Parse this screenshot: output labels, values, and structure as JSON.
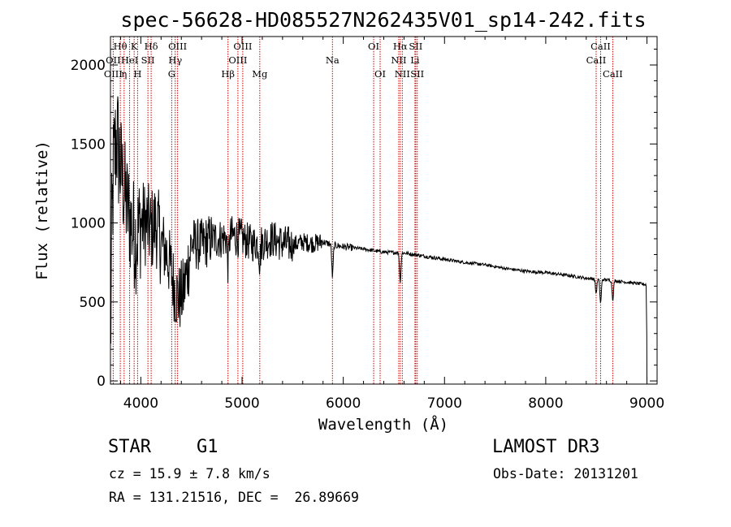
{
  "chart_data": {
    "type": "line",
    "title": "spec-56628-HD085527N262435V01_sp14-242.fits",
    "xlabel": "Wavelength (Å)",
    "ylabel": "Flux (relative)",
    "xlim": [
      3700,
      9100
    ],
    "ylim": [
      -20,
      2180
    ],
    "x_ticks": [
      4000,
      5000,
      6000,
      7000,
      8000,
      9000
    ],
    "y_ticks": [
      0,
      500,
      1000,
      1500,
      2000
    ],
    "spectrum_anchors": [
      [
        3700,
        150
      ],
      [
        3712,
        900
      ],
      [
        3730,
        1350
      ],
      [
        3760,
        1550
      ],
      [
        3800,
        1350
      ],
      [
        3850,
        1150
      ],
      [
        3900,
        1000
      ],
      [
        3950,
        900
      ],
      [
        4000,
        1000
      ],
      [
        4050,
        1000
      ],
      [
        4100,
        950
      ],
      [
        4150,
        1000
      ],
      [
        4200,
        870
      ],
      [
        4250,
        820
      ],
      [
        4300,
        700
      ],
      [
        4340,
        560
      ],
      [
        4380,
        520
      ],
      [
        4420,
        560
      ],
      [
        4460,
        700
      ],
      [
        4500,
        870
      ],
      [
        4600,
        860
      ],
      [
        4700,
        900
      ],
      [
        4800,
        900
      ],
      [
        4900,
        920
      ],
      [
        5000,
        900
      ],
      [
        5100,
        870
      ],
      [
        5200,
        880
      ],
      [
        5300,
        900
      ],
      [
        5400,
        870
      ],
      [
        5500,
        860
      ],
      [
        5600,
        880
      ],
      [
        5700,
        870
      ],
      [
        5800,
        880
      ],
      [
        5900,
        860
      ],
      [
        6000,
        850
      ],
      [
        6200,
        835
      ],
      [
        6400,
        815
      ],
      [
        6600,
        810
      ],
      [
        6800,
        790
      ],
      [
        7000,
        770
      ],
      [
        7200,
        750
      ],
      [
        7400,
        735
      ],
      [
        7600,
        712
      ],
      [
        7800,
        695
      ],
      [
        8000,
        685
      ],
      [
        8200,
        670
      ],
      [
        8400,
        650
      ],
      [
        8600,
        640
      ],
      [
        8800,
        625
      ],
      [
        8990,
        610
      ]
    ],
    "absorption_features": [
      {
        "x": 4862,
        "depth": 180
      },
      {
        "x": 5175,
        "depth": 120
      },
      {
        "x": 5893,
        "depth": 200
      },
      {
        "x": 6563,
        "depth": 180
      },
      {
        "x": 8498,
        "depth": 90
      },
      {
        "x": 8542,
        "depth": 150
      },
      {
        "x": 8662,
        "depth": 120
      }
    ],
    "spectral_lines": [
      {
        "label": "Hθ",
        "x": 3797,
        "row": 0
      },
      {
        "label": "OII",
        "x": 3727,
        "row": 1
      },
      {
        "label": "OIII",
        "x": 3727,
        "row": 2
      },
      {
        "label": "HeI",
        "x": 3889,
        "row": 1
      },
      {
        "label": "η",
        "x": 3835,
        "row": 2
      },
      {
        "label": "K",
        "x": 3934,
        "row": 0
      },
      {
        "label": "SII",
        "x": 4070,
        "row": 1
      },
      {
        "label": "H",
        "x": 3968,
        "row": 2
      },
      {
        "label": "Hδ",
        "x": 4102,
        "row": 0
      },
      {
        "label": "OIII",
        "x": 4363,
        "row": 0
      },
      {
        "label": "Hγ",
        "x": 4340,
        "row": 1
      },
      {
        "label": "G",
        "x": 4305,
        "row": 2
      },
      {
        "label": "OIII",
        "x": 5007,
        "row": 0
      },
      {
        "label": "OIII",
        "x": 4959,
        "row": 1
      },
      {
        "label": "Hβ",
        "x": 4861,
        "row": 2
      },
      {
        "label": "Mg",
        "x": 5175,
        "row": 2
      },
      {
        "label": "Na",
        "x": 5893,
        "row": 1
      },
      {
        "label": "OI",
        "x": 6300,
        "row": 0
      },
      {
        "label": "OI",
        "x": 6364,
        "row": 2
      },
      {
        "label": "Hα",
        "x": 6563,
        "row": 0
      },
      {
        "label": "SII",
        "x": 6716,
        "row": 0
      },
      {
        "label": "NII",
        "x": 6548,
        "row": 1
      },
      {
        "label": "Li",
        "x": 6708,
        "row": 1
      },
      {
        "label": "NII",
        "x": 6583,
        "row": 2
      },
      {
        "label": "SII",
        "x": 6731,
        "row": 2
      },
      {
        "label": "CaII",
        "x": 8542,
        "row": 0
      },
      {
        "label": "CaII",
        "x": 8498,
        "row": 1
      },
      {
        "label": "CaII",
        "x": 8662,
        "row": 2
      }
    ],
    "colors": {
      "spectrum": "#000000",
      "line_markers": "#cc0000"
    }
  },
  "info": {
    "object_class": "STAR",
    "subclass": "G1",
    "survey": "LAMOST DR3",
    "redshift": "cz = 15.9 ± 7.8 km/s",
    "obs_date": "Obs-Date: 20131201",
    "coords": "RA = 131.21516, DEC =  26.89669"
  }
}
